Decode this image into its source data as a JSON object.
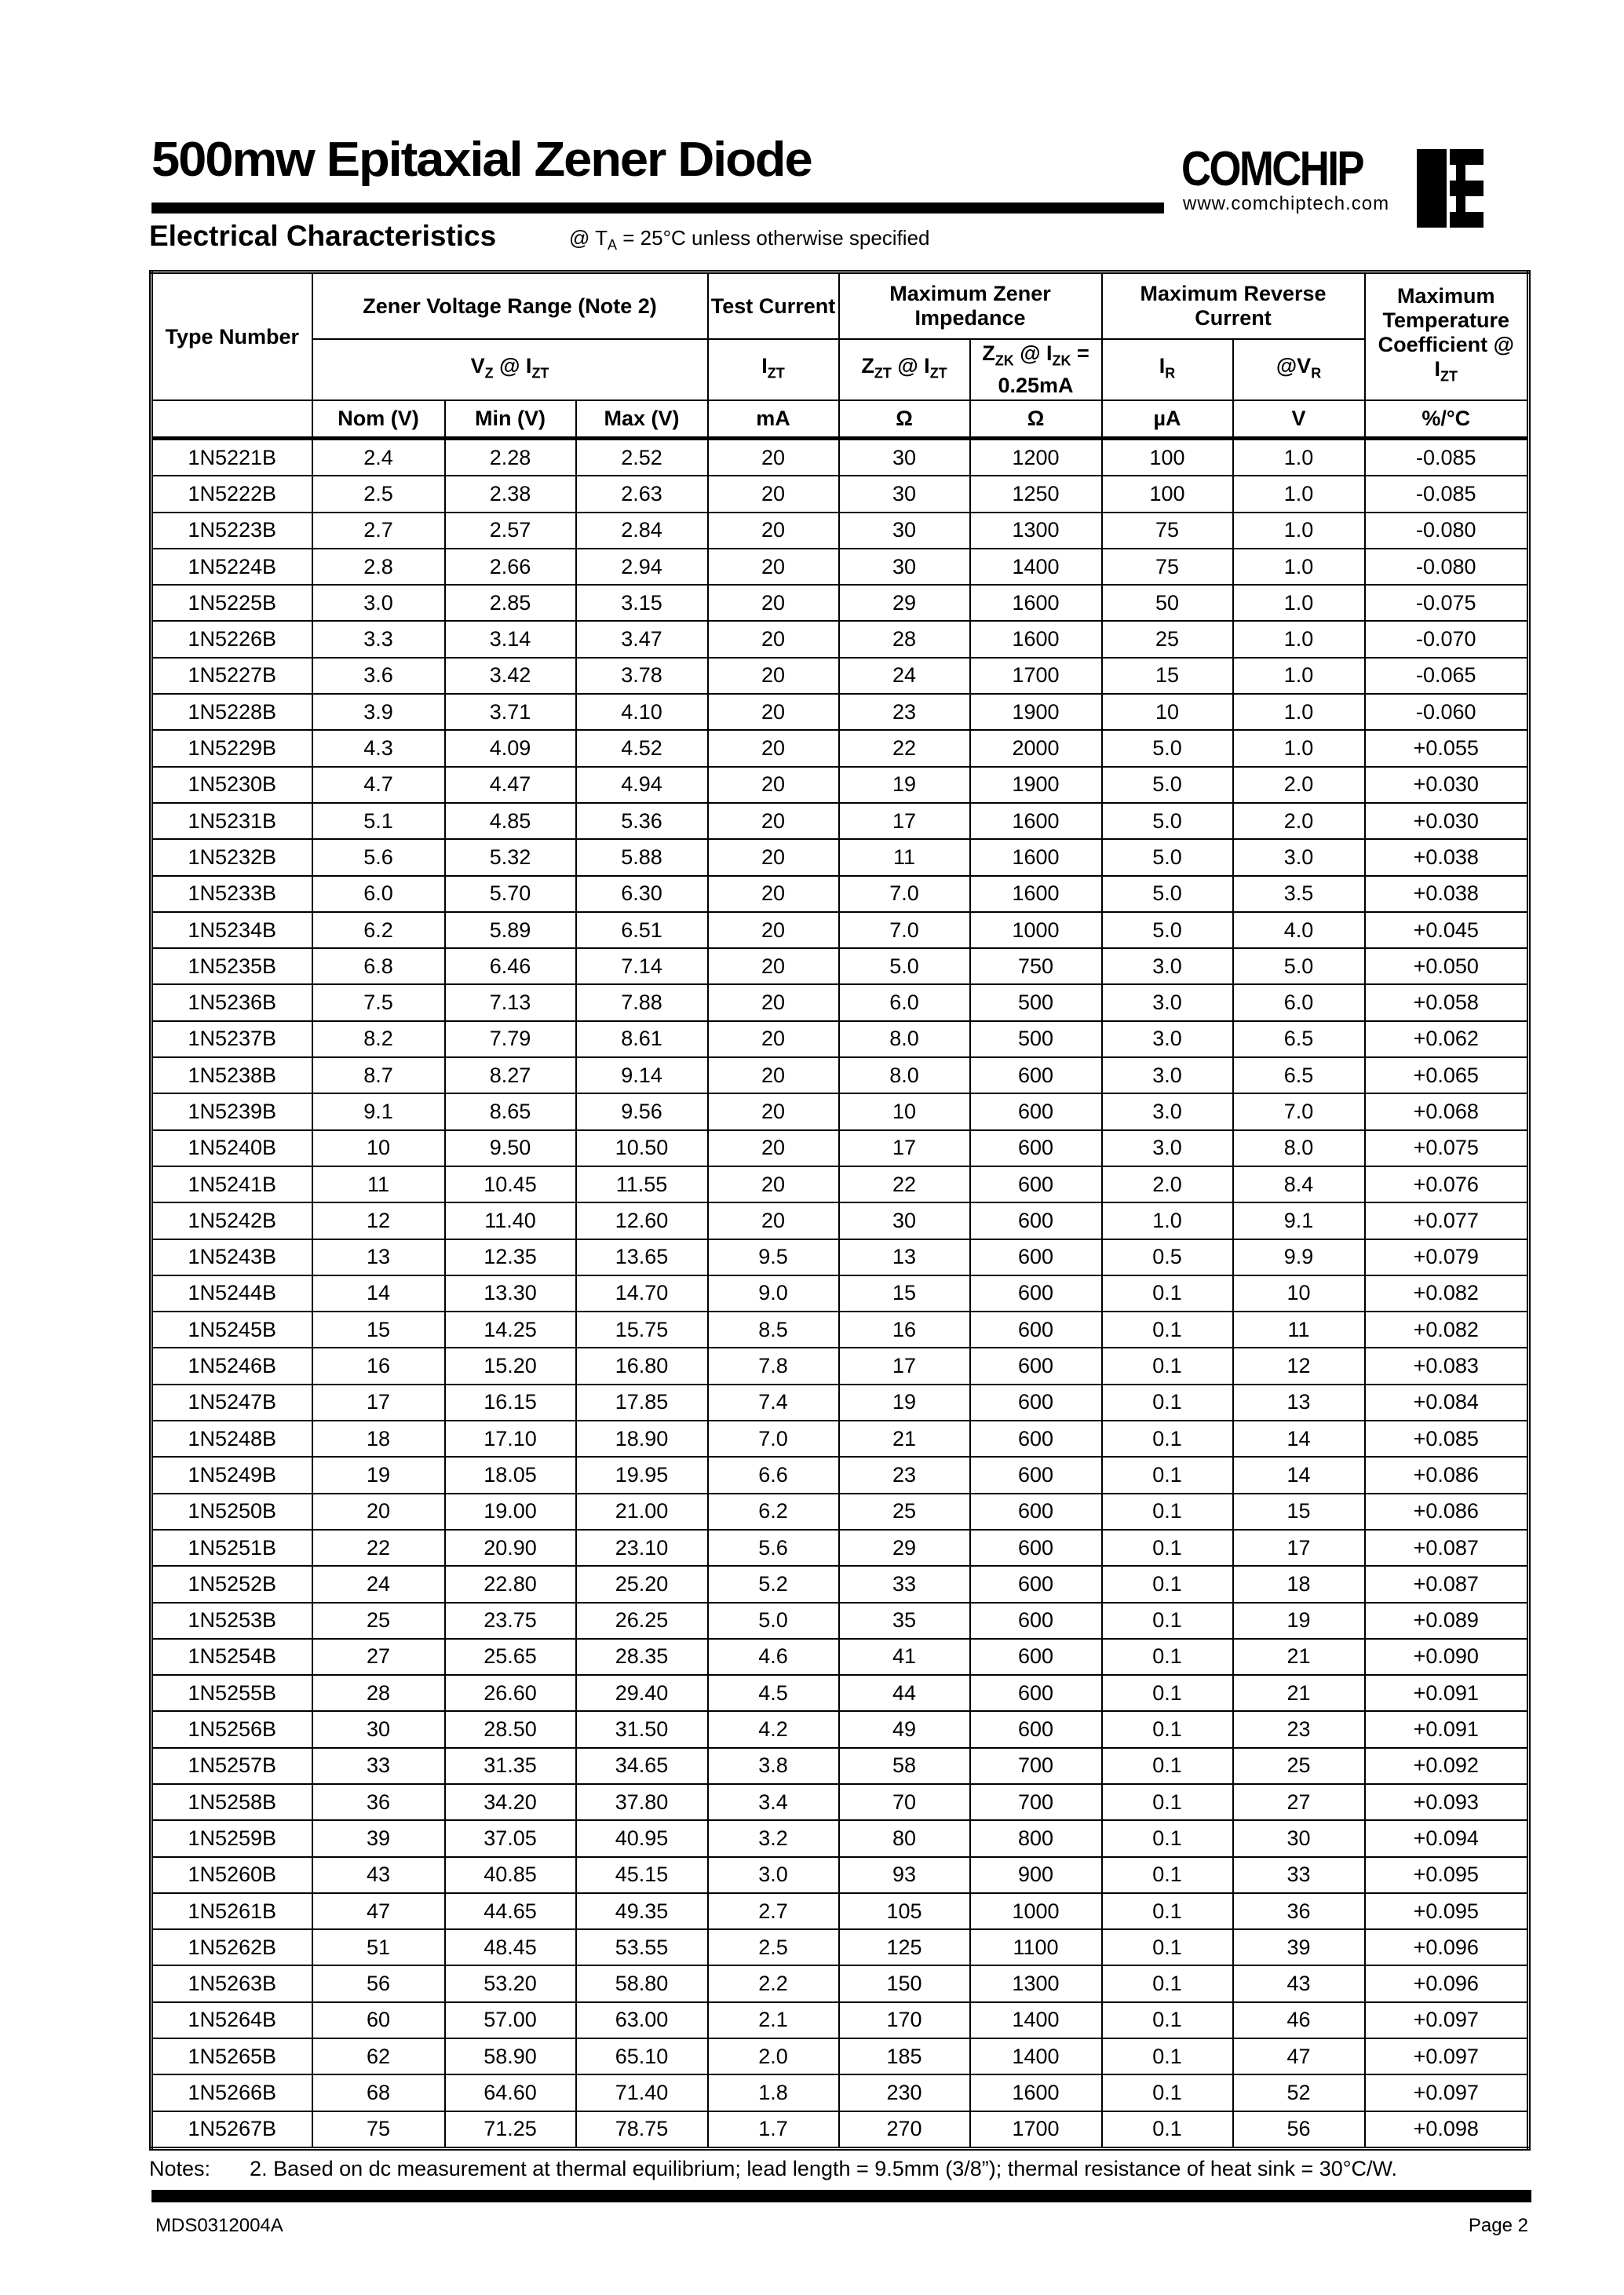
{
  "header": {
    "title": "500mw Epitaxial Zener Diode",
    "brand": "COMCHIP",
    "url": "www.comchiptech.com",
    "section": "Electrical Characteristics",
    "condition_prefix": "@ T",
    "condition_sub": "A",
    "condition_rest": " = 25°C unless otherwise specified"
  },
  "table": {
    "h_type": "Type Number",
    "h_zener": "Zener Voltage Range (Note 2)",
    "h_test": "Test Current",
    "h_imp": "Maximum Zener Impedance",
    "h_rev": "Maximum Reverse Current",
    "h_temp": "Maximum Temperature Coefficient @ I",
    "h_temp_sub": "ZT",
    "h_vz": "V",
    "h_vz_sub": "Z",
    "h_vz_at": " @ I",
    "h_vz_at_sub": "ZT",
    "h_izt": "I",
    "h_izt_sub": "ZT",
    "h_zzt": "Z",
    "h_zzt_sub": "ZT",
    "h_zzt_at": " @ I",
    "h_zzt_at_sub": "ZT",
    "h_zzk": "Z",
    "h_zzk_sub": "ZK",
    "h_zzk_at": " @ I",
    "h_zzk_at_sub": "ZK",
    "h_zzk_rest": " = 0.25mA",
    "h_ir": "I",
    "h_ir_sub": "R",
    "h_vr": "@V",
    "h_vr_sub": "R",
    "units": [
      "Nom (V)",
      "Min (V)",
      "Max (V)",
      "mA",
      "Ω",
      "Ω",
      "µA",
      "V",
      "%/°C"
    ],
    "rows": [
      [
        "1N5221B",
        "2.4",
        "2.28",
        "2.52",
        "20",
        "30",
        "1200",
        "100",
        "1.0",
        "-0.085"
      ],
      [
        "1N5222B",
        "2.5",
        "2.38",
        "2.63",
        "20",
        "30",
        "1250",
        "100",
        "1.0",
        "-0.085"
      ],
      [
        "1N5223B",
        "2.7",
        "2.57",
        "2.84",
        "20",
        "30",
        "1300",
        "75",
        "1.0",
        "-0.080"
      ],
      [
        "1N5224B",
        "2.8",
        "2.66",
        "2.94",
        "20",
        "30",
        "1400",
        "75",
        "1.0",
        "-0.080"
      ],
      [
        "1N5225B",
        "3.0",
        "2.85",
        "3.15",
        "20",
        "29",
        "1600",
        "50",
        "1.0",
        "-0.075"
      ],
      [
        "1N5226B",
        "3.3",
        "3.14",
        "3.47",
        "20",
        "28",
        "1600",
        "25",
        "1.0",
        "-0.070"
      ],
      [
        "1N5227B",
        "3.6",
        "3.42",
        "3.78",
        "20",
        "24",
        "1700",
        "15",
        "1.0",
        "-0.065"
      ],
      [
        "1N5228B",
        "3.9",
        "3.71",
        "4.10",
        "20",
        "23",
        "1900",
        "10",
        "1.0",
        "-0.060"
      ],
      [
        "1N5229B",
        "4.3",
        "4.09",
        "4.52",
        "20",
        "22",
        "2000",
        "5.0",
        "1.0",
        "+0.055"
      ],
      [
        "1N5230B",
        "4.7",
        "4.47",
        "4.94",
        "20",
        "19",
        "1900",
        "5.0",
        "2.0",
        "+0.030"
      ],
      [
        "1N5231B",
        "5.1",
        "4.85",
        "5.36",
        "20",
        "17",
        "1600",
        "5.0",
        "2.0",
        "+0.030"
      ],
      [
        "1N5232B",
        "5.6",
        "5.32",
        "5.88",
        "20",
        "11",
        "1600",
        "5.0",
        "3.0",
        "+0.038"
      ],
      [
        "1N5233B",
        "6.0",
        "5.70",
        "6.30",
        "20",
        "7.0",
        "1600",
        "5.0",
        "3.5",
        "+0.038"
      ],
      [
        "1N5234B",
        "6.2",
        "5.89",
        "6.51",
        "20",
        "7.0",
        "1000",
        "5.0",
        "4.0",
        "+0.045"
      ],
      [
        "1N5235B",
        "6.8",
        "6.46",
        "7.14",
        "20",
        "5.0",
        "750",
        "3.0",
        "5.0",
        "+0.050"
      ],
      [
        "1N5236B",
        "7.5",
        "7.13",
        "7.88",
        "20",
        "6.0",
        "500",
        "3.0",
        "6.0",
        "+0.058"
      ],
      [
        "1N5237B",
        "8.2",
        "7.79",
        "8.61",
        "20",
        "8.0",
        "500",
        "3.0",
        "6.5",
        "+0.062"
      ],
      [
        "1N5238B",
        "8.7",
        "8.27",
        "9.14",
        "20",
        "8.0",
        "600",
        "3.0",
        "6.5",
        "+0.065"
      ],
      [
        "1N5239B",
        "9.1",
        "8.65",
        "9.56",
        "20",
        "10",
        "600",
        "3.0",
        "7.0",
        "+0.068"
      ],
      [
        "1N5240B",
        "10",
        "9.50",
        "10.50",
        "20",
        "17",
        "600",
        "3.0",
        "8.0",
        "+0.075"
      ],
      [
        "1N5241B",
        "11",
        "10.45",
        "11.55",
        "20",
        "22",
        "600",
        "2.0",
        "8.4",
        "+0.076"
      ],
      [
        "1N5242B",
        "12",
        "11.40",
        "12.60",
        "20",
        "30",
        "600",
        "1.0",
        "9.1",
        "+0.077"
      ],
      [
        "1N5243B",
        "13",
        "12.35",
        "13.65",
        "9.5",
        "13",
        "600",
        "0.5",
        "9.9",
        "+0.079"
      ],
      [
        "1N5244B",
        "14",
        "13.30",
        "14.70",
        "9.0",
        "15",
        "600",
        "0.1",
        "10",
        "+0.082"
      ],
      [
        "1N5245B",
        "15",
        "14.25",
        "15.75",
        "8.5",
        "16",
        "600",
        "0.1",
        "11",
        "+0.082"
      ],
      [
        "1N5246B",
        "16",
        "15.20",
        "16.80",
        "7.8",
        "17",
        "600",
        "0.1",
        "12",
        "+0.083"
      ],
      [
        "1N5247B",
        "17",
        "16.15",
        "17.85",
        "7.4",
        "19",
        "600",
        "0.1",
        "13",
        "+0.084"
      ],
      [
        "1N5248B",
        "18",
        "17.10",
        "18.90",
        "7.0",
        "21",
        "600",
        "0.1",
        "14",
        "+0.085"
      ],
      [
        "1N5249B",
        "19",
        "18.05",
        "19.95",
        "6.6",
        "23",
        "600",
        "0.1",
        "14",
        "+0.086"
      ],
      [
        "1N5250B",
        "20",
        "19.00",
        "21.00",
        "6.2",
        "25",
        "600",
        "0.1",
        "15",
        "+0.086"
      ],
      [
        "1N5251B",
        "22",
        "20.90",
        "23.10",
        "5.6",
        "29",
        "600",
        "0.1",
        "17",
        "+0.087"
      ],
      [
        "1N5252B",
        "24",
        "22.80",
        "25.20",
        "5.2",
        "33",
        "600",
        "0.1",
        "18",
        "+0.087"
      ],
      [
        "1N5253B",
        "25",
        "23.75",
        "26.25",
        "5.0",
        "35",
        "600",
        "0.1",
        "19",
        "+0.089"
      ],
      [
        "1N5254B",
        "27",
        "25.65",
        "28.35",
        "4.6",
        "41",
        "600",
        "0.1",
        "21",
        "+0.090"
      ],
      [
        "1N5255B",
        "28",
        "26.60",
        "29.40",
        "4.5",
        "44",
        "600",
        "0.1",
        "21",
        "+0.091"
      ],
      [
        "1N5256B",
        "30",
        "28.50",
        "31.50",
        "4.2",
        "49",
        "600",
        "0.1",
        "23",
        "+0.091"
      ],
      [
        "1N5257B",
        "33",
        "31.35",
        "34.65",
        "3.8",
        "58",
        "700",
        "0.1",
        "25",
        "+0.092"
      ],
      [
        "1N5258B",
        "36",
        "34.20",
        "37.80",
        "3.4",
        "70",
        "700",
        "0.1",
        "27",
        "+0.093"
      ],
      [
        "1N5259B",
        "39",
        "37.05",
        "40.95",
        "3.2",
        "80",
        "800",
        "0.1",
        "30",
        "+0.094"
      ],
      [
        "1N5260B",
        "43",
        "40.85",
        "45.15",
        "3.0",
        "93",
        "900",
        "0.1",
        "33",
        "+0.095"
      ],
      [
        "1N5261B",
        "47",
        "44.65",
        "49.35",
        "2.7",
        "105",
        "1000",
        "0.1",
        "36",
        "+0.095"
      ],
      [
        "1N5262B",
        "51",
        "48.45",
        "53.55",
        "2.5",
        "125",
        "1100",
        "0.1",
        "39",
        "+0.096"
      ],
      [
        "1N5263B",
        "56",
        "53.20",
        "58.80",
        "2.2",
        "150",
        "1300",
        "0.1",
        "43",
        "+0.096"
      ],
      [
        "1N5264B",
        "60",
        "57.00",
        "63.00",
        "2.1",
        "170",
        "1400",
        "0.1",
        "46",
        "+0.097"
      ],
      [
        "1N5265B",
        "62",
        "58.90",
        "65.10",
        "2.0",
        "185",
        "1400",
        "0.1",
        "47",
        "+0.097"
      ],
      [
        "1N5266B",
        "68",
        "64.60",
        "71.40",
        "1.8",
        "230",
        "1600",
        "0.1",
        "52",
        "+0.097"
      ],
      [
        "1N5267B",
        "75",
        "71.25",
        "78.75",
        "1.7",
        "270",
        "1700",
        "0.1",
        "56",
        "+0.098"
      ]
    ]
  },
  "notes": {
    "label": "Notes:",
    "text": "2. Based on dc measurement at thermal equilibrium; lead length = 9.5mm (3/8”); thermal resistance of heat sink = 30°C/W."
  },
  "footer": {
    "doc_id": "MDS0312004A",
    "page": "Page 2"
  }
}
